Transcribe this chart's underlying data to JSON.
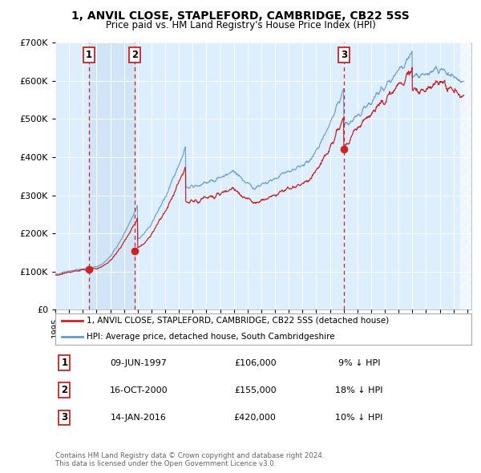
{
  "title_line1": "1, ANVIL CLOSE, STAPLEFORD, CAMBRIDGE, CB22 5SS",
  "title_line2": "Price paid vs. HM Land Registry's House Price Index (HPI)",
  "legend_line1": "1, ANVIL CLOSE, STAPLEFORD, CAMBRIDGE, CB22 5SS (detached house)",
  "legend_line2": "HPI: Average price, detached house, South Cambridgeshire",
  "footer_line1": "Contains HM Land Registry data © Crown copyright and database right 2024.",
  "footer_line2": "This data is licensed under the Open Government Licence v3.0.",
  "red_color": "#cc2222",
  "blue_color": "#6699cc",
  "bg_chart_color": "#ddeeff",
  "shade_color": "#c8ddf0",
  "annotations": [
    {
      "num": 1,
      "x_year": 1997.44,
      "y_val": 106000,
      "date": "09-JUN-1997",
      "price": "£106,000",
      "pct": "9% ↓ HPI"
    },
    {
      "num": 2,
      "x_year": 2000.79,
      "y_val": 155000,
      "date": "16-OCT-2000",
      "price": "£155,000",
      "pct": "18% ↓ HPI"
    },
    {
      "num": 3,
      "x_year": 2016.04,
      "y_val": 420000,
      "date": "14-JAN-2016",
      "price": "£420,000",
      "pct": "10% ↓ HPI"
    }
  ],
  "xmin": 1995.0,
  "xmax": 2025.3,
  "ymin": 0,
  "ymax": 700000,
  "yticks": [
    0,
    100000,
    200000,
    300000,
    400000,
    500000,
    600000,
    700000
  ],
  "ytick_labels": [
    "£0",
    "£100K",
    "£200K",
    "£300K",
    "£400K",
    "£500K",
    "£600K",
    "£700K"
  ]
}
